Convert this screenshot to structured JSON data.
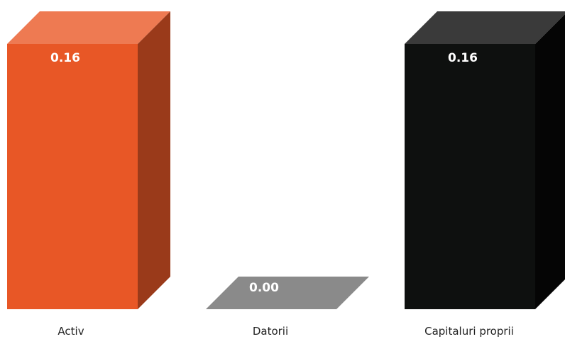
{
  "chart_data": {
    "type": "bar",
    "style": "3d-column",
    "categories": [
      "Activ",
      "Datorii",
      "Capitaluri proprii"
    ],
    "values": [
      0.16,
      0.0,
      0.16
    ],
    "data_labels": [
      "0.16",
      "0.00",
      "0.16"
    ],
    "ylim": [
      0,
      0.16
    ],
    "grid": false,
    "legend": "none",
    "colors": [
      {
        "front": "#e85726",
        "side": "#9a3a1a",
        "top": "#ee7a52"
      },
      {
        "front": "#8a8a8a",
        "side": "#6f6f6f",
        "top": "#8a8a8a"
      },
      {
        "front": "#0e100f",
        "side": "#050505",
        "top": "#3a3a3a"
      }
    ]
  }
}
